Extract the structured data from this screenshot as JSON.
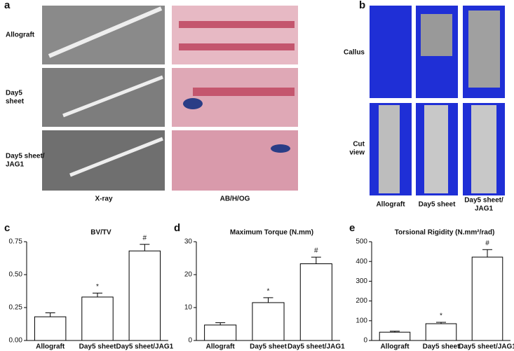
{
  "figure": {
    "panel_a": {
      "label": "a",
      "rows": [
        [
          "Allograft"
        ],
        [
          "Day5",
          "sheet"
        ],
        [
          "Day5 sheet/",
          "JAG1"
        ]
      ],
      "columns": [
        "X-ray",
        "AB/H/OG"
      ]
    },
    "panel_b": {
      "label": "b",
      "rows": [
        [
          "Callus"
        ],
        [
          "Cut",
          "view"
        ]
      ],
      "columns": [
        [
          "Allograft"
        ],
        [
          "Day5 sheet"
        ],
        [
          "Day5 sheet/",
          "JAG1"
        ]
      ]
    }
  },
  "chart_data": [
    {
      "type": "bar",
      "panel": "c",
      "title": "BV/TV",
      "categories": [
        "Allograft",
        "Day5 sheet",
        "Day5 sheet/JAG1"
      ],
      "values": [
        0.18,
        0.33,
        0.68
      ],
      "errors": [
        0.03,
        0.03,
        0.05
      ],
      "markers": [
        null,
        "*",
        "#"
      ],
      "color": "#ffffff",
      "ylim": [
        0,
        0.75
      ],
      "yticks": [
        {
          "value": 0,
          "label": "0.00"
        },
        0.25,
        {
          "value": 0.5,
          "label": "0.50"
        },
        0.75
      ]
    },
    {
      "type": "bar",
      "panel": "d",
      "title": "Maximum Torque (N.mm)",
      "categories": [
        "Allograft",
        "Day5 sheet",
        "Day5 sheet/JAG1"
      ],
      "values": [
        4.7,
        11.5,
        23.3
      ],
      "errors": [
        0.7,
        1.5,
        2
      ],
      "markers": [
        null,
        "*",
        "#"
      ],
      "color": "#ffffff",
      "ylim": [
        0,
        30
      ],
      "yticks": [
        0,
        10,
        20,
        30
      ]
    },
    {
      "type": "bar",
      "panel": "e",
      "title": "Torsional Rigidity (N.mm²/rad)",
      "categories": [
        "Allograft",
        "Day5 sheet",
        "Day5 sheet/JAG1"
      ],
      "values": [
        42,
        85,
        422
      ],
      "errors": [
        5,
        7,
        38
      ],
      "markers": [
        null,
        "*",
        "#"
      ],
      "color": "#ffffff",
      "ylim": [
        0,
        500
      ],
      "yticks": [
        0,
        100,
        200,
        300,
        400,
        500
      ]
    }
  ]
}
